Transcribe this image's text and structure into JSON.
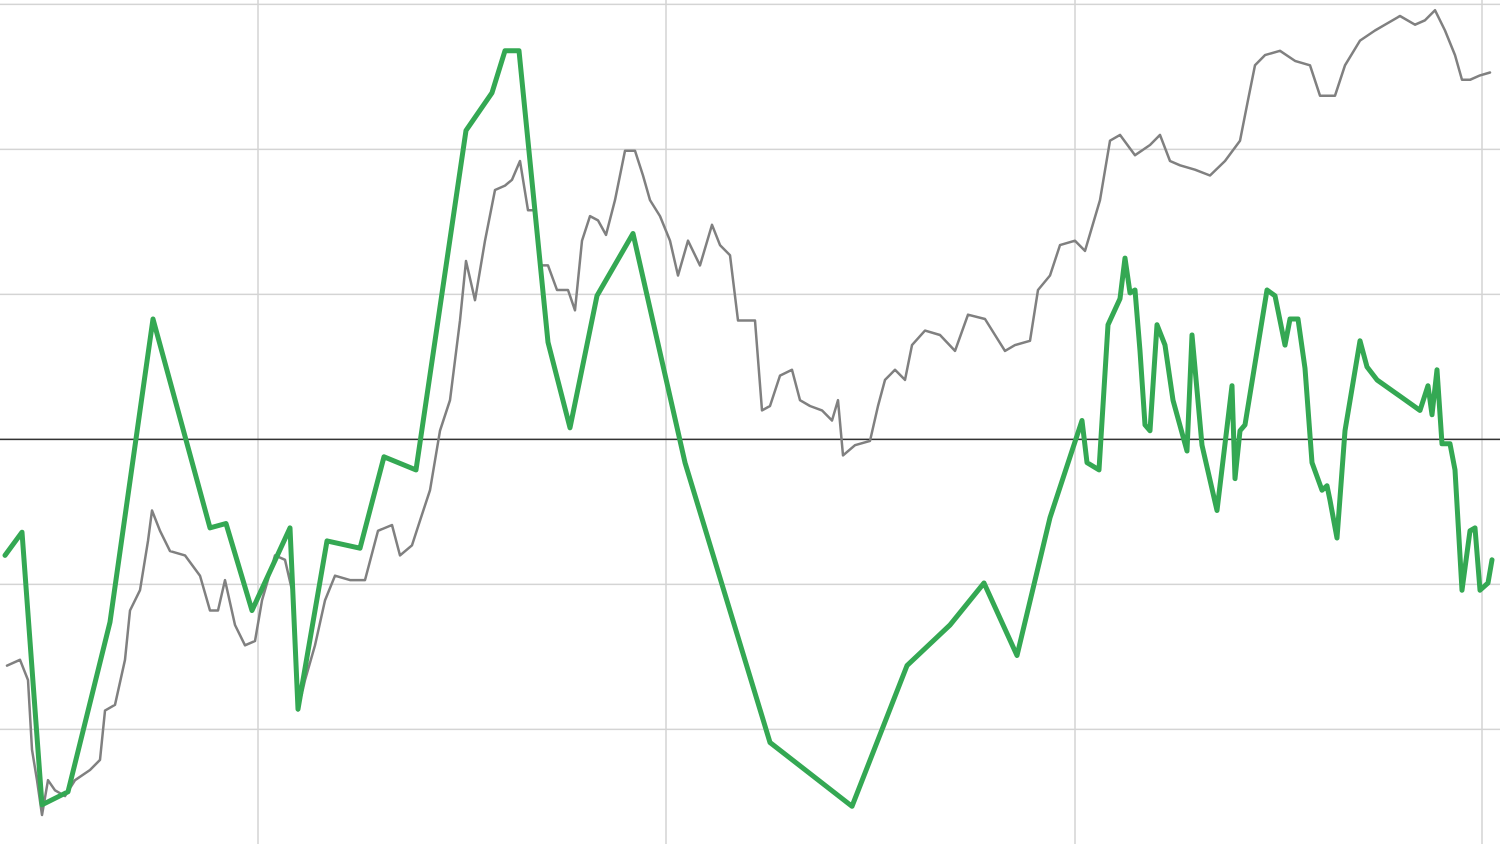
{
  "chart_data": {
    "type": "line",
    "xlim": [
      0,
      15
    ],
    "ylim": [
      -2.79,
      3.03
    ],
    "xticks": [
      2.58,
      6.66,
      10.75,
      14.82
    ],
    "yticks": [
      3,
      2,
      1,
      0,
      -1,
      -2
    ],
    "grid": true,
    "zero_line": true,
    "series": [
      {
        "color": "#808080",
        "x": [
          0.07,
          0.2,
          0.28,
          0.32,
          0.37,
          0.42,
          0.48,
          0.55,
          0.65,
          0.75,
          0.9,
          1.0,
          1.05,
          1.15,
          1.25,
          1.3,
          1.4,
          1.48,
          1.52,
          1.6,
          1.7,
          1.85,
          2.0,
          2.1,
          2.18,
          2.25,
          2.35,
          2.45,
          2.55,
          2.62,
          2.75,
          2.85,
          2.92,
          2.98,
          3.05,
          3.15,
          3.25,
          3.35,
          3.5,
          3.65,
          3.78,
          3.92,
          4.0,
          4.12,
          4.2,
          4.3,
          4.4,
          4.5,
          4.6,
          4.66,
          4.75,
          4.85,
          4.95,
          5.05,
          5.12,
          5.2,
          5.28,
          5.35,
          5.4,
          5.48,
          5.57,
          5.68,
          5.75,
          5.82,
          5.9,
          5.98,
          6.06,
          6.15,
          6.25,
          6.35,
          6.43,
          6.5,
          6.6,
          6.7,
          6.78,
          6.88,
          7.0,
          7.12,
          7.2,
          7.3,
          7.38,
          7.48,
          7.55,
          7.62,
          7.7,
          7.8,
          7.92,
          8.0,
          8.1,
          8.22,
          8.32,
          8.38,
          8.43,
          8.55,
          8.7,
          8.78,
          8.85,
          8.95,
          9.05,
          9.12,
          9.25,
          9.4,
          9.55,
          9.68,
          9.85,
          9.95,
          10.05,
          10.15,
          10.3,
          10.38,
          10.5,
          10.6,
          10.75,
          10.85,
          11.0,
          11.1,
          11.2,
          11.35,
          11.5,
          11.6,
          11.7,
          11.8,
          11.95,
          12.1,
          12.25,
          12.4,
          12.48,
          12.55,
          12.65,
          12.8,
          12.95,
          13.1,
          13.2,
          13.35,
          13.45,
          13.6,
          13.75,
          13.85,
          14.0,
          14.15,
          14.25,
          14.35,
          14.45,
          14.55,
          14.62,
          14.7,
          14.8,
          14.9
        ],
        "values": [
          -1.56,
          -1.52,
          -1.66,
          -2.14,
          -2.35,
          -2.59,
          -2.35,
          -2.42,
          -2.46,
          -2.35,
          -2.28,
          -2.21,
          -1.87,
          -1.83,
          -1.52,
          -1.18,
          -1.04,
          -0.7,
          -0.49,
          -0.63,
          -0.77,
          -0.8,
          -0.94,
          -1.18,
          -1.18,
          -0.97,
          -1.28,
          -1.42,
          -1.39,
          -1.11,
          -0.8,
          -0.83,
          -1.04,
          -1.87,
          -1.66,
          -1.42,
          -1.11,
          -0.94,
          -0.97,
          -0.97,
          -0.63,
          -0.59,
          -0.8,
          -0.73,
          -0.56,
          -0.35,
          0.06,
          0.27,
          0.82,
          1.23,
          0.96,
          1.37,
          1.72,
          1.75,
          1.79,
          1.92,
          1.58,
          1.58,
          1.2,
          1.2,
          1.03,
          1.03,
          0.89,
          1.37,
          1.54,
          1.51,
          1.41,
          1.65,
          1.99,
          1.99,
          1.82,
          1.65,
          1.54,
          1.37,
          1.13,
          1.37,
          1.2,
          1.48,
          1.34,
          1.27,
          0.82,
          0.82,
          0.82,
          0.2,
          0.23,
          0.44,
          0.48,
          0.27,
          0.23,
          0.2,
          0.13,
          0.27,
          -0.11,
          -0.04,
          -0.01,
          0.23,
          0.41,
          0.48,
          0.41,
          0.65,
          0.75,
          0.72,
          0.61,
          0.86,
          0.83,
          0.72,
          0.61,
          0.65,
          0.68,
          1.03,
          1.13,
          1.34,
          1.37,
          1.3,
          1.65,
          2.06,
          2.1,
          1.96,
          2.03,
          2.1,
          1.92,
          1.89,
          1.86,
          1.82,
          1.92,
          2.06,
          2.34,
          2.58,
          2.65,
          2.68,
          2.61,
          2.58,
          2.37,
          2.37,
          2.58,
          2.75,
          2.82,
          2.86,
          2.92,
          2.86,
          2.89,
          2.96,
          2.82,
          2.65,
          2.48,
          2.48,
          2.51,
          2.53
        ]
      },
      {
        "color": "#34a853",
        "x": [
          0.05,
          0.22,
          0.42,
          0.68,
          1.1,
          1.53,
          2.1,
          2.26,
          2.52,
          2.9,
          2.98,
          3.27,
          3.6,
          3.84,
          4.16,
          4.66,
          4.92,
          5.05,
          5.19,
          5.48,
          5.7,
          5.97,
          6.33,
          6.85,
          7.7,
          8.52,
          9.07,
          9.5,
          9.84,
          10.17,
          10.5,
          10.82,
          10.87,
          10.99,
          11.08,
          11.2,
          11.25,
          11.3,
          11.35,
          11.4,
          11.45,
          11.5,
          11.57,
          11.65,
          11.73,
          11.87,
          11.92,
          12.02,
          12.17,
          12.32,
          12.35,
          12.4,
          12.45,
          12.67,
          12.75,
          12.85,
          12.9,
          12.98,
          13.05,
          13.12,
          13.22,
          13.27,
          13.3,
          13.37,
          13.45,
          13.6,
          13.67,
          13.77,
          14.2,
          14.28,
          14.32,
          14.37,
          14.42,
          14.5,
          14.55,
          14.62,
          14.7,
          14.75,
          14.8,
          14.88,
          14.92
        ],
        "values": [
          -0.8,
          -0.64,
          -2.52,
          -2.43,
          -1.26,
          0.83,
          -0.61,
          -0.58,
          -1.18,
          -0.61,
          -1.86,
          -0.7,
          -0.75,
          -0.12,
          -0.21,
          2.13,
          2.39,
          2.68,
          2.68,
          0.67,
          0.08,
          0.99,
          1.42,
          -0.16,
          -2.09,
          -2.53,
          -1.56,
          -1.28,
          -0.99,
          -1.49,
          -0.54,
          0.13,
          -0.16,
          -0.21,
          0.79,
          0.97,
          1.25,
          1.01,
          1.03,
          0.61,
          0.1,
          0.06,
          0.79,
          0.65,
          0.27,
          -0.08,
          0.72,
          -0.04,
          -0.49,
          0.37,
          -0.27,
          0.06,
          0.1,
          1.03,
          0.99,
          0.65,
          0.83,
          0.83,
          0.49,
          -0.16,
          -0.35,
          -0.32,
          -0.42,
          -0.68,
          0.06,
          0.68,
          0.5,
          0.41,
          0.2,
          0.37,
          0.17,
          0.48,
          -0.03,
          -0.03,
          -0.21,
          -1.04,
          -0.63,
          -0.61,
          -1.04,
          -0.99,
          -0.83
        ]
      }
    ]
  }
}
